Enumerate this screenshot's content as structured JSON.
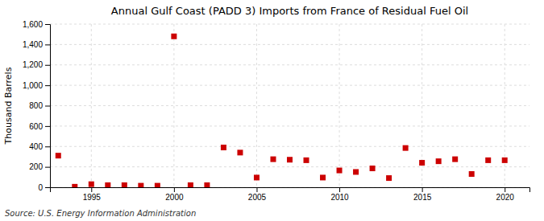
{
  "chart_data": {
    "type": "scatter",
    "title": "Annual Gulf Coast (PADD 3) Imports from France of Residual Fuel Oil",
    "ylabel": "Thousand Barrels",
    "source": "Source: U.S. Energy Information Administration",
    "x": [
      1993,
      1994,
      1995,
      1996,
      1997,
      1998,
      1999,
      2000,
      2001,
      2002,
      2003,
      2004,
      2005,
      2006,
      2007,
      2008,
      2009,
      2010,
      2011,
      2012,
      2013,
      2014,
      2015,
      2016,
      2017,
      2018,
      2019,
      2020
    ],
    "values": [
      310,
      5,
      30,
      20,
      20,
      15,
      15,
      1480,
      20,
      20,
      390,
      340,
      95,
      275,
      270,
      265,
      95,
      165,
      150,
      185,
      90,
      385,
      240,
      255,
      275,
      130,
      265,
      265
    ],
    "color": "#cc0000",
    "marker": "square",
    "xlim": [
      1992.5,
      2021.5
    ],
    "xticks": [
      1995,
      2000,
      2005,
      2010,
      2015,
      2020
    ],
    "ylim": [
      0,
      1600
    ],
    "yticks": [
      0,
      200,
      400,
      600,
      800,
      {
        "value": 1000,
        "label": "1,000"
      },
      {
        "value": 1200,
        "label": "1,200"
      },
      {
        "value": 1400,
        "label": "1,400"
      },
      {
        "value": 1600,
        "label": "1,600"
      }
    ],
    "grid": true
  }
}
